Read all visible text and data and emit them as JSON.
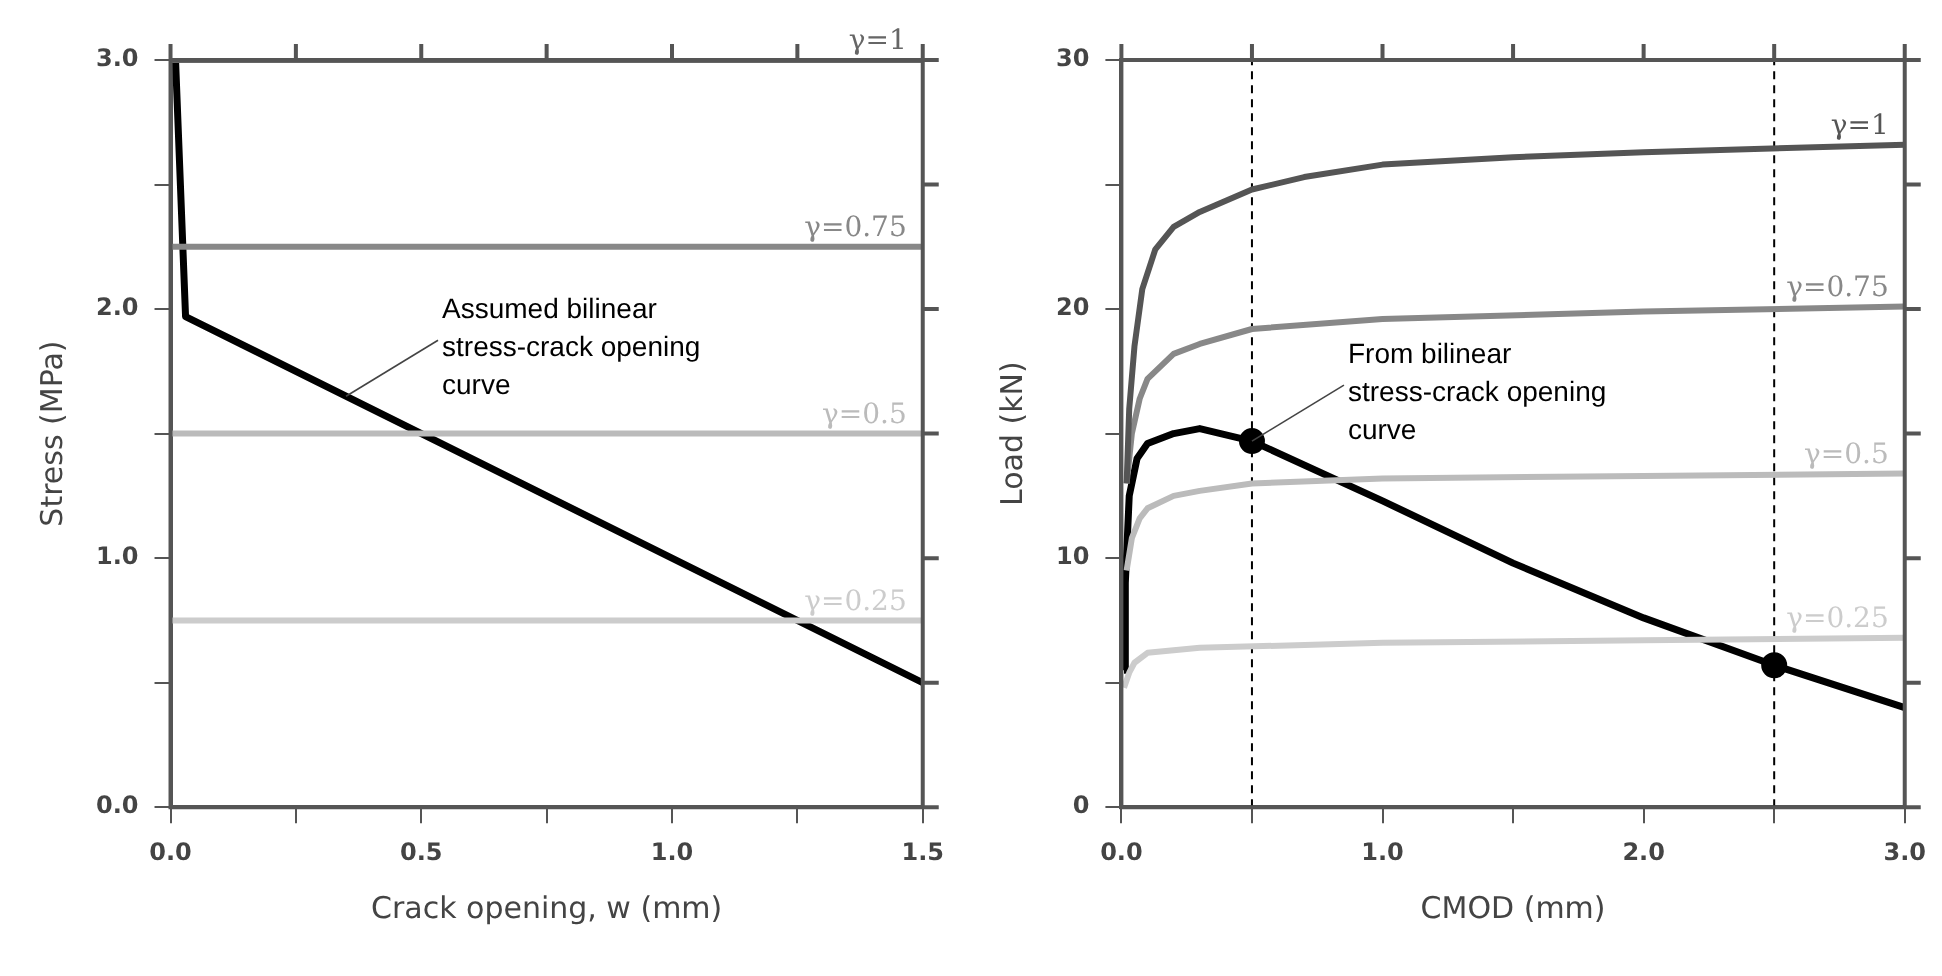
{
  "chart_data": [
    {
      "type": "line",
      "xlabel": "Crack opening, w (mm)",
      "ylabel": "Stress (MPa)",
      "xlim": [
        0,
        1.5
      ],
      "ylim": [
        0,
        3.0
      ],
      "xticks": [
        {
          "value": 0,
          "label": "0.0"
        },
        {
          "value": 0.25,
          "label": null
        },
        {
          "value": 0.5,
          "label": "0.5"
        },
        {
          "value": 0.75,
          "label": null
        },
        {
          "value": 1.0,
          "label": "1.0"
        },
        {
          "value": 1.25,
          "label": null
        },
        {
          "value": 1.5,
          "label": "1.5"
        }
      ],
      "yticks": [
        {
          "value": 0,
          "label": "0.0"
        },
        {
          "value": 0.5,
          "label": null
        },
        {
          "value": 1.0,
          "label": "1.0"
        },
        {
          "value": 1.5,
          "label": null
        },
        {
          "value": 2.0,
          "label": "2.0"
        },
        {
          "value": 2.5,
          "label": null
        },
        {
          "value": 3.0,
          "label": "3.0"
        }
      ],
      "grid": false,
      "legend": false,
      "marker": "none",
      "line_style": "solid",
      "series": [
        {
          "name": "γ=1",
          "color": "#666666",
          "x": [
            0,
            1.5
          ],
          "values": [
            3.0,
            3.0
          ]
        },
        {
          "name": "γ=0.75",
          "color": "#888888",
          "x": [
            0,
            1.5
          ],
          "values": [
            2.25,
            2.25
          ]
        },
        {
          "name": "γ=0.5",
          "color": "#bbbbbb",
          "x": [
            0,
            1.5
          ],
          "values": [
            1.5,
            1.5
          ]
        },
        {
          "name": "γ=0.25",
          "color": "#cccccc",
          "x": [
            0,
            1.5
          ],
          "values": [
            0.75,
            0.75
          ]
        },
        {
          "color": "#000000",
          "x": [
            0.01,
            0.03,
            1.5
          ],
          "values": [
            3.0,
            1.97,
            0.5
          ]
        }
      ],
      "annotations": [
        {
          "text": "Assumed bilinear stress-crack opening curve",
          "x": 0.35,
          "y": 1.65
        }
      ]
    },
    {
      "type": "line",
      "xlabel": "CMOD (mm)",
      "ylabel": "Load (kN)",
      "xlim": [
        0,
        3.0
      ],
      "ylim": [
        0,
        30
      ],
      "xticks": [
        {
          "value": 0,
          "label": "0.0"
        },
        {
          "value": 0.5,
          "label": null
        },
        {
          "value": 1.0,
          "label": "1.0"
        },
        {
          "value": 1.5,
          "label": null
        },
        {
          "value": 2.0,
          "label": "2.0"
        },
        {
          "value": 2.5,
          "label": null
        },
        {
          "value": 3.0,
          "label": "3.0"
        }
      ],
      "yticks": [
        0,
        {
          "value": 5,
          "label": null
        },
        10,
        {
          "value": 15,
          "label": null
        },
        20,
        {
          "value": 25,
          "label": null
        },
        30
      ],
      "grid": false,
      "legend": false,
      "marker": "none",
      "line_style": "solid",
      "series": [
        {
          "name": "γ=1",
          "color": "#555555",
          "x": [
            0.02,
            0.03,
            0.05,
            0.08,
            0.13,
            0.2,
            0.3,
            0.5,
            0.7,
            1.0,
            1.5,
            2.0,
            3.0
          ],
          "values": [
            13,
            16,
            18.5,
            20.8,
            22.4,
            23.3,
            23.9,
            24.8,
            25.3,
            25.8,
            26.1,
            26.3,
            26.6
          ]
        },
        {
          "name": "γ=0.75",
          "color": "#888888",
          "x": [
            0.02,
            0.04,
            0.07,
            0.1,
            0.2,
            0.3,
            0.5,
            1.0,
            2.0,
            3.0
          ],
          "values": [
            13,
            15,
            16.4,
            17.2,
            18.2,
            18.6,
            19.2,
            19.6,
            19.9,
            20.1
          ]
        },
        {
          "name": "γ=0.5",
          "color": "#bbbbbb",
          "x": [
            0.02,
            0.04,
            0.07,
            0.1,
            0.2,
            0.3,
            0.5,
            1.0,
            2.0,
            3.0
          ],
          "values": [
            9.5,
            10.8,
            11.6,
            12.0,
            12.5,
            12.7,
            13.0,
            13.2,
            13.3,
            13.4
          ]
        },
        {
          "name": "γ=0.25",
          "color": "#cccccc",
          "x": [
            0.01,
            0.03,
            0.05,
            0.1,
            0.3,
            1.0,
            2.0,
            3.0
          ],
          "values": [
            4.8,
            5.4,
            5.8,
            6.2,
            6.4,
            6.6,
            6.7,
            6.8
          ]
        },
        {
          "color": "#000000",
          "x": [
            0.01,
            0.015,
            0.03,
            0.06,
            0.1,
            0.2,
            0.3,
            0.5,
            1.0,
            1.5,
            2.0,
            2.5,
            3.0
          ],
          "values": [
            5.5,
            9,
            12.5,
            14.0,
            14.6,
            15.0,
            15.2,
            14.7,
            12.3,
            9.8,
            7.6,
            5.7,
            4.0
          ]
        },
        {
          "type": "scatter",
          "marker": "circle",
          "color": "#000000",
          "x": [
            0.5,
            2.5
          ],
          "values": [
            14.7,
            5.7
          ]
        }
      ],
      "ref_lines": [
        {
          "axis": "x",
          "value": 0.5,
          "line_style": "dashed",
          "color": "#000000"
        },
        {
          "axis": "x",
          "value": 2.5,
          "line_style": "dashed",
          "color": "#000000"
        }
      ],
      "annotations": [
        {
          "text": "From bilinear stress-crack opening curve",
          "x": 0.5,
          "y": 14.7
        }
      ]
    }
  ]
}
